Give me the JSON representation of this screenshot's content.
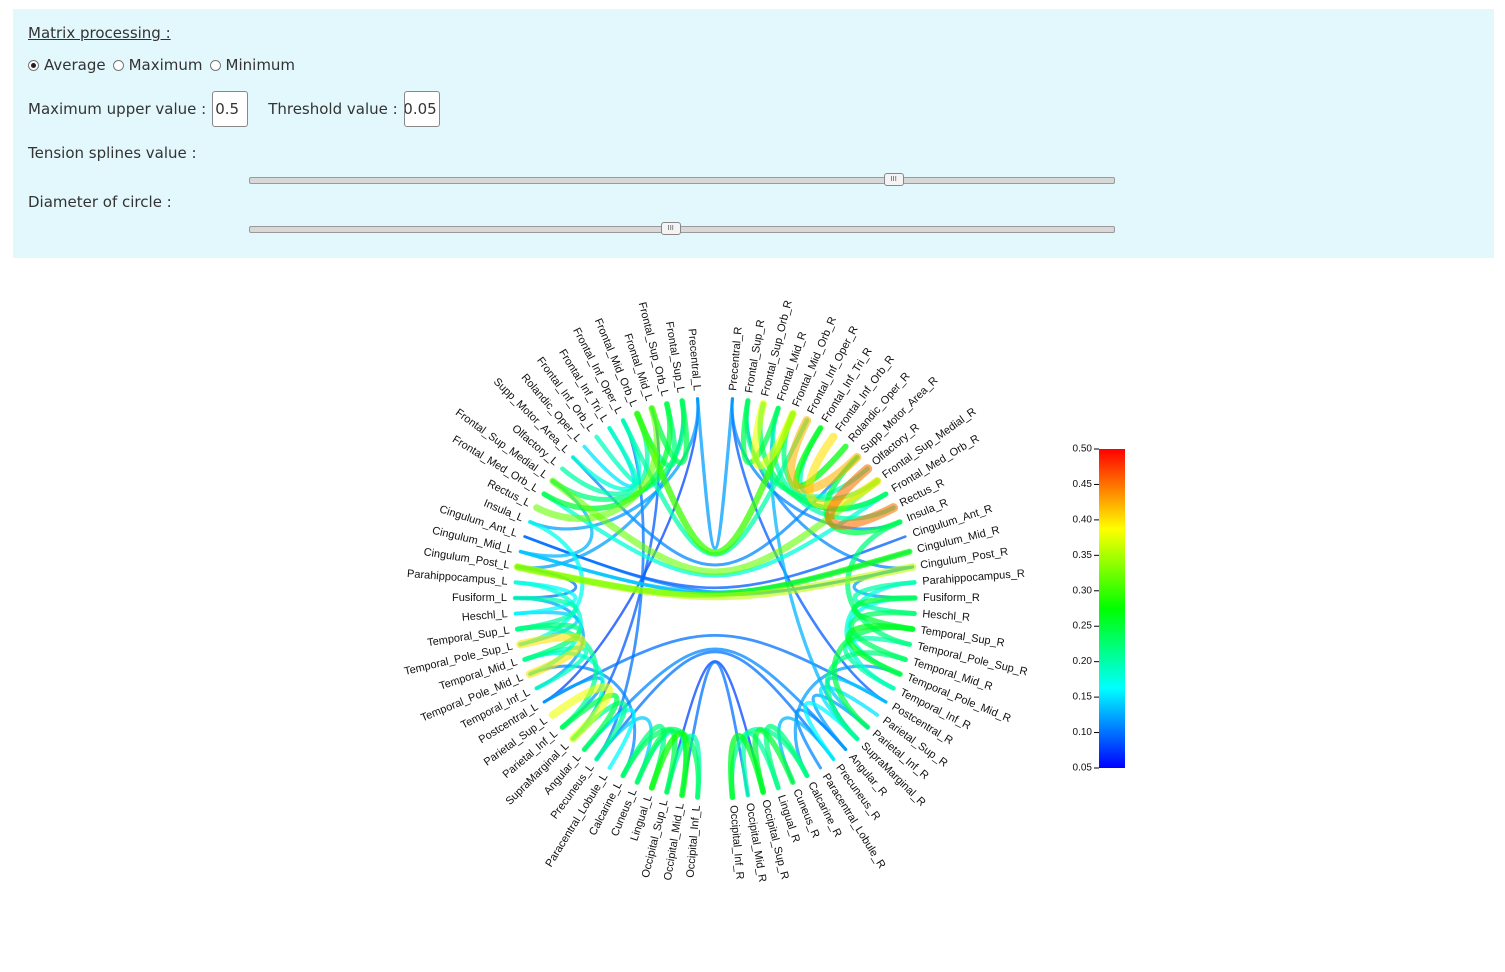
{
  "matrix": {
    "title": "Matrix processing :",
    "options": [
      {
        "label": "Average",
        "checked": true
      },
      {
        "label": "Maximum",
        "checked": false
      },
      {
        "label": "Minimum",
        "checked": false
      }
    ],
    "max_upper_label": "Maximum upper value :",
    "max_upper_value": "0.5",
    "threshold_label": "Threshold value :",
    "threshold_value": "0.05",
    "tension_label": "Tension splines value :",
    "tension_level": 0.745,
    "diameter_label": "Diameter of circle :",
    "diameter_level": 0.487,
    "handle_glyph": "III"
  },
  "chart_data": {
    "type": "chord",
    "left_labels": [
      "Precentral_L",
      "Frontal_Sup_L",
      "Frontal_Sup_Orb_L",
      "Frontal_Mid_L",
      "Frontal_Mid_Orb_L",
      "Frontal_Inf_Oper_L",
      "Frontal_Inf_Tri_L",
      "Frontal_Inf_Orb_L",
      "Rolandic_Oper_L",
      "Supp_Motor_Area_L",
      "Olfactory_L",
      "Frontal_Sup_Medial_L",
      "Frontal_Med_Orb_L",
      "Rectus_L",
      "Insula_L",
      "Cingulum_Ant_L",
      "Cingulum_Mid_L",
      "Cingulum_Post_L",
      "Parahippocampus_L",
      "Fusiform_L",
      "Heschl_L",
      "Temporal_Sup_L",
      "Temporal_Pole_Sup_L",
      "Temporal_Mid_L",
      "Temporal_Pole_Mid_L",
      "Temporal_Inf_L",
      "Postcentral_L",
      "Parietal_Sup_L",
      "Parietal_Inf_L",
      "SupraMarginal_L",
      "Angular_L",
      "Precuneus_L",
      "Paracentral_Lobule_L",
      "Calcarine_L",
      "Cuneus_L",
      "Lingual_L",
      "Occipital_Sup_L",
      "Occipital_Mid_L",
      "Occipital_Inf_L"
    ],
    "right_labels": [
      "Precentral_R",
      "Frontal_Sup_R",
      "Frontal_Sup_Orb_R",
      "Frontal_Mid_R",
      "Frontal_Mid_Orb_R",
      "Frontal_Inf_Oper_R",
      "Frontal_Inf_Tri_R",
      "Frontal_Inf_Orb_R",
      "Rolandic_Oper_R",
      "Supp_Motor_Area_R",
      "Olfactory_R",
      "Frontal_Sup_Medial_R",
      "Frontal_Med_Orb_R",
      "Rectus_R",
      "Insula_R",
      "Cingulum_Ant_R",
      "Cingulum_Mid_R",
      "Cingulum_Post_R",
      "Parahippocampus_R",
      "Fusiform_R",
      "Heschl_R",
      "Temporal_Sup_R",
      "Temporal_Pole_Sup_R",
      "Temporal_Mid_R",
      "Temporal_Pole_Mid_R",
      "Temporal_Inf_R",
      "Postcentral_R",
      "Parietal_Sup_R",
      "Parietal_Inf_R",
      "SupraMarginal_R",
      "Angular_R",
      "Precuneus_R",
      "Paracentral_Lobule_R",
      "Calcarine_R",
      "Cuneus_R",
      "Lingual_R",
      "Occipital_Sup_R",
      "Occipital_Mid_R",
      "Occipital_Inf_R"
    ],
    "links": [
      {
        "a": "L17",
        "b": "R17",
        "v": 0.36
      },
      {
        "a": "L16",
        "b": "R16",
        "v": 0.14
      },
      {
        "a": "L15",
        "b": "R15",
        "v": 0.09
      },
      {
        "a": "L17",
        "b": "R16",
        "v": 0.28
      },
      {
        "a": "L16",
        "b": "R17",
        "v": 0.12
      },
      {
        "a": "L15",
        "b": "R17",
        "v": 0.1
      },
      {
        "a": "L4",
        "b": "R4",
        "v": 0.3
      },
      {
        "a": "L5",
        "b": "R5",
        "v": 0.2
      },
      {
        "a": "L11",
        "b": "R11",
        "v": 0.32
      },
      {
        "a": "L12",
        "b": "R12",
        "v": 0.18
      },
      {
        "a": "L9",
        "b": "R9",
        "v": 0.11
      },
      {
        "a": "L0",
        "b": "R0",
        "v": 0.12
      },
      {
        "a": "L26",
        "b": "R26",
        "v": 0.1
      },
      {
        "a": "L30",
        "b": "R30",
        "v": 0.11
      },
      {
        "a": "L31",
        "b": "R31",
        "v": 0.1
      },
      {
        "a": "L3",
        "b": "L13",
        "v": 0.32
      },
      {
        "a": "L2",
        "b": "L12",
        "v": 0.25
      },
      {
        "a": "L1",
        "b": "L11",
        "v": 0.22
      },
      {
        "a": "L4",
        "b": "L10",
        "v": 0.2
      },
      {
        "a": "L5",
        "b": "L9",
        "v": 0.18
      },
      {
        "a": "L6",
        "b": "L8",
        "v": 0.15
      },
      {
        "a": "L0",
        "b": "L14",
        "v": 0.12
      },
      {
        "a": "L1",
        "b": "L3",
        "v": 0.24
      },
      {
        "a": "L2",
        "b": "L4",
        "v": 0.22
      },
      {
        "a": "L6",
        "b": "L7",
        "v": 0.19
      },
      {
        "a": "L0",
        "b": "L26",
        "v": 0.08
      },
      {
        "a": "L1",
        "b": "L17",
        "v": 0.12
      },
      {
        "a": "L3",
        "b": "L29",
        "v": 0.09
      },
      {
        "a": "L5",
        "b": "L31",
        "v": 0.1
      },
      {
        "a": "L14",
        "b": "L22",
        "v": 0.17
      },
      {
        "a": "L11",
        "b": "L16",
        "v": 0.13
      },
      {
        "a": "L19",
        "b": "L21",
        "v": 0.2
      },
      {
        "a": "L21",
        "b": "L23",
        "v": 0.22
      },
      {
        "a": "L22",
        "b": "L24",
        "v": 0.4
      },
      {
        "a": "L23",
        "b": "L25",
        "v": 0.19
      },
      {
        "a": "L18",
        "b": "L20",
        "v": 0.16
      },
      {
        "a": "L19",
        "b": "L25",
        "v": 0.12
      },
      {
        "a": "L18",
        "b": "L24",
        "v": 0.18
      },
      {
        "a": "L20",
        "b": "L22",
        "v": 0.14
      },
      {
        "a": "L17",
        "b": "L19",
        "v": 0.1
      },
      {
        "a": "L21",
        "b": "L28",
        "v": 0.21
      },
      {
        "a": "L23",
        "b": "L29",
        "v": 0.18
      },
      {
        "a": "L26",
        "b": "L28",
        "v": 0.12
      },
      {
        "a": "L27",
        "b": "L29",
        "v": 0.38
      },
      {
        "a": "L28",
        "b": "L30",
        "v": 0.24
      },
      {
        "a": "L29",
        "b": "L31",
        "v": 0.21
      },
      {
        "a": "L30",
        "b": "L32",
        "v": 0.16
      },
      {
        "a": "L33",
        "b": "L35",
        "v": 0.22
      },
      {
        "a": "L34",
        "b": "L36",
        "v": 0.24
      },
      {
        "a": "L35",
        "b": "L37",
        "v": 0.28
      },
      {
        "a": "L36",
        "b": "L38",
        "v": 0.2
      },
      {
        "a": "L33",
        "b": "L38",
        "v": 0.23
      },
      {
        "a": "L34",
        "b": "L37",
        "v": 0.17
      },
      {
        "a": "L31",
        "b": "L34",
        "v": 0.14
      },
      {
        "a": "L37",
        "b": "R37",
        "v": 0.1
      },
      {
        "a": "L36",
        "b": "R36",
        "v": 0.08
      },
      {
        "a": "R1",
        "b": "R3",
        "v": 0.24
      },
      {
        "a": "R2",
        "b": "R4",
        "v": 0.38
      },
      {
        "a": "R3",
        "b": "R13",
        "v": 0.2
      },
      {
        "a": "R4",
        "b": "R12",
        "v": 0.22
      },
      {
        "a": "R5",
        "b": "R9",
        "v": 0.42
      },
      {
        "a": "R6",
        "b": "R8",
        "v": 0.27
      },
      {
        "a": "R7",
        "b": "R11",
        "v": 0.4
      },
      {
        "a": "R10",
        "b": "R13",
        "v": 0.45
      },
      {
        "a": "R9",
        "b": "R14",
        "v": 0.24
      },
      {
        "a": "R0",
        "b": "R14",
        "v": 0.11
      },
      {
        "a": "R1",
        "b": "R11",
        "v": 0.21
      },
      {
        "a": "R2",
        "b": "R12",
        "v": 0.23
      },
      {
        "a": "R6",
        "b": "R10",
        "v": 0.19
      },
      {
        "a": "R0",
        "b": "R26",
        "v": 0.09
      },
      {
        "a": "R3",
        "b": "R29",
        "v": 0.13
      },
      {
        "a": "R1",
        "b": "R17",
        "v": 0.11
      },
      {
        "a": "R14",
        "b": "R22",
        "v": 0.22
      },
      {
        "a": "R18",
        "b": "R20",
        "v": 0.2
      },
      {
        "a": "R19",
        "b": "R21",
        "v": 0.25
      },
      {
        "a": "R20",
        "b": "R23",
        "v": 0.23
      },
      {
        "a": "R21",
        "b": "R24",
        "v": 0.26
      },
      {
        "a": "R22",
        "b": "R25",
        "v": 0.2
      },
      {
        "a": "R19",
        "b": "R24",
        "v": 0.16
      },
      {
        "a": "R17",
        "b": "R19",
        "v": 0.12
      },
      {
        "a": "R18",
        "b": "R25",
        "v": 0.18
      },
      {
        "a": "R21",
        "b": "R28",
        "v": 0.24
      },
      {
        "a": "R23",
        "b": "R29",
        "v": 0.22
      },
      {
        "a": "R26",
        "b": "R28",
        "v": 0.14
      },
      {
        "a": "R27",
        "b": "R29",
        "v": 0.15
      },
      {
        "a": "R28",
        "b": "R30",
        "v": 0.12
      },
      {
        "a": "R29",
        "b": "R31",
        "v": 0.16
      },
      {
        "a": "R30",
        "b": "R32",
        "v": 0.11
      },
      {
        "a": "R33",
        "b": "R35",
        "v": 0.22
      },
      {
        "a": "R34",
        "b": "R36",
        "v": 0.25
      },
      {
        "a": "R35",
        "b": "R37",
        "v": 0.2
      },
      {
        "a": "R36",
        "b": "R38",
        "v": 0.26
      },
      {
        "a": "R33",
        "b": "R38",
        "v": 0.21
      },
      {
        "a": "R31",
        "b": "R34",
        "v": 0.13
      },
      {
        "a": "R24",
        "b": "R33",
        "v": 0.12
      },
      {
        "a": "L24",
        "b": "L33",
        "v": 0.11
      }
    ],
    "colorbar": {
      "min": 0.05,
      "max": 0.5,
      "ticks": [
        "0.50",
        "0.45",
        "0.40",
        "0.35",
        "0.30",
        "0.25",
        "0.20",
        "0.15",
        "0.10",
        "0.05"
      ],
      "colors": [
        "#ff0000",
        "#ffff00",
        "#00ff00",
        "#00ffff",
        "#0000ff"
      ]
    }
  }
}
